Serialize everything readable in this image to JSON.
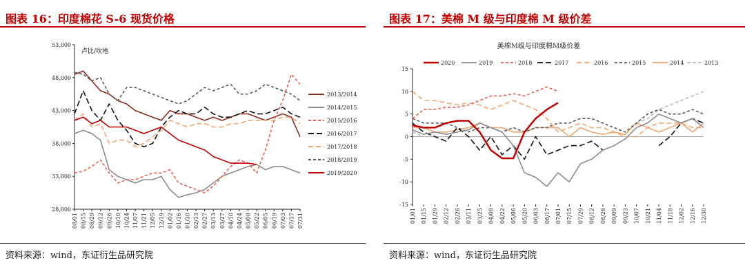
{
  "colors": {
    "accent": "#c00000"
  },
  "left": {
    "title": "图表 16：印度棉花 S-6 现货价格",
    "source": "资料来源：wind，东证衍生品研究院"
  },
  "right": {
    "title": "图表 17：美棉 M 级与印度棉 M 级价差",
    "source": "资料来源：wind，东证衍生品研究院"
  },
  "chart_data": [
    {
      "type": "line",
      "ylabel": "卢比/坎地",
      "ylim": [
        28000,
        53000
      ],
      "yticks": [
        28000,
        33000,
        38000,
        43000,
        48000,
        53000
      ],
      "ytick_labels": [
        "28,000",
        "33,000",
        "38,000",
        "43,000",
        "48,000",
        "53,000"
      ],
      "x_tick_labels": [
        "08/01",
        "08/15",
        "08/29",
        "09/12",
        "09/26",
        "10/10",
        "10/24",
        "11/07",
        "11/21",
        "12/05",
        "12/19",
        "01/02",
        "01/16",
        "01/30",
        "02/13",
        "02/27",
        "03/13",
        "03/27",
        "04/10",
        "04/24",
        "05/08",
        "05/22",
        "06/05",
        "06/19",
        "07/03",
        "07/17",
        "07/31"
      ],
      "legend_position": "right",
      "series": [
        {
          "name": "2013/2014",
          "color": "#8b2a1e",
          "dash": "solid",
          "values": [
            48500,
            49000,
            47500,
            46000,
            45500,
            44500,
            44000,
            43000,
            42500,
            42000,
            41500,
            43000,
            42500,
            42500,
            42000,
            41500,
            42000,
            41500,
            42000,
            42500,
            42500,
            42000,
            41500,
            42000,
            42500,
            42000,
            39000
          ]
        },
        {
          "name": "2014/2015",
          "color": "#8c8c8c",
          "dash": "solid",
          "values": [
            39500,
            40000,
            39500,
            38500,
            34000,
            33000,
            32500,
            32000,
            32500,
            32500,
            33000,
            31000,
            29800,
            30200,
            30500,
            31000,
            32000,
            33000,
            33500,
            34000,
            34500,
            34800,
            34000,
            34500,
            34500,
            34000,
            33500
          ]
        },
        {
          "name": "2015/2016",
          "color": "#ea5c52",
          "dash": "4,3",
          "values": [
            33500,
            33800,
            34500,
            35500,
            33500,
            32000,
            32500,
            32500,
            33000,
            33500,
            33500,
            34000,
            32000,
            31500,
            31000,
            30500,
            31500,
            33000,
            34500,
            35500,
            35000,
            33500,
            37000,
            41500,
            44500,
            48500,
            47000
          ]
        },
        {
          "name": "2016/2017",
          "color": "#111111",
          "dash": "8,4",
          "values": [
            42500,
            46000,
            43000,
            41500,
            44000,
            41500,
            40000,
            38000,
            37500,
            38000,
            40500,
            42000,
            43000,
            42500,
            42500,
            43500,
            42500,
            42000,
            42000,
            42500,
            43000,
            42500,
            42500,
            43000,
            43500,
            42500,
            42000
          ]
        },
        {
          "name": "2017/2018",
          "color": "#f4a56e",
          "dash": "7,4",
          "values": [
            41500,
            42500,
            40500,
            41000,
            38000,
            38500,
            38500,
            37500,
            38000,
            39000,
            40000,
            41500,
            41000,
            40500,
            41000,
            41000,
            40500,
            40500,
            41000,
            41000,
            41500,
            41500,
            41500,
            41500,
            42000,
            42000,
            41000
          ]
        },
        {
          "name": "2018/2019",
          "color": "#555555",
          "dash": "4,3",
          "values": [
            48800,
            48500,
            47500,
            48000,
            45500,
            44500,
            46500,
            46500,
            46000,
            45500,
            45000,
            44500,
            44000,
            44500,
            45500,
            46500,
            46000,
            46500,
            47000,
            45500,
            45500,
            46000,
            47000,
            46500,
            46000,
            45500,
            44500
          ]
        },
        {
          "name": "2019/2020",
          "color": "#c00000",
          "dash": "solid",
          "values": [
            41500,
            42000,
            41000,
            41500,
            40500,
            40500,
            40500,
            40000,
            39500,
            40000,
            40500,
            39500,
            38500,
            38000,
            37500,
            37000,
            36000,
            35500,
            35000,
            35000,
            35000,
            34800,
            null,
            null,
            null,
            null,
            null
          ]
        }
      ]
    },
    {
      "type": "line",
      "title": "美棉M级与印度棉M级价差",
      "ylim": [
        -15,
        15
      ],
      "yticks": [
        -15,
        -10,
        -5,
        0,
        5,
        10,
        15
      ],
      "x_tick_labels": [
        "01/01",
        "01/15",
        "01/29",
        "02/12",
        "02/26",
        "03/11",
        "03/25",
        "04/08",
        "04/22",
        "05/06",
        "05/20",
        "06/03",
        "06/17",
        "07/01",
        "07/15",
        "07/29",
        "08/12",
        "08/26",
        "09/09",
        "09/23",
        "10/07",
        "10/21",
        "11/04",
        "11/18",
        "12/02",
        "12/16",
        "12/30"
      ],
      "legend_position": "top",
      "series": [
        {
          "name": "2020",
          "color": "#c00000",
          "dash": "solid",
          "width": 2.5,
          "values": [
            2.5,
            2,
            2,
            3,
            3.5,
            3.5,
            1,
            -3,
            -4.8,
            -4.8,
            1,
            4,
            6,
            7.5,
            null,
            null,
            null,
            null,
            null,
            null,
            null,
            null,
            null,
            null,
            null,
            null,
            null
          ]
        },
        {
          "name": "2019",
          "color": "#8c8c8c",
          "dash": "solid",
          "values": [
            1.5,
            0.5,
            1,
            0.5,
            1,
            1.5,
            3,
            2,
            1,
            -2,
            -8,
            -9,
            -11,
            -8,
            -10,
            -6,
            -5,
            -3,
            -2,
            -0.5,
            2,
            3,
            5,
            4,
            3,
            4,
            2
          ]
        },
        {
          "name": "2018",
          "color": "#ea5c52",
          "dash": "4,3",
          "values": [
            4,
            6,
            6,
            6.5,
            6.5,
            7,
            8,
            9,
            9,
            9.5,
            9,
            10,
            11,
            10,
            null,
            null,
            null,
            null,
            null,
            null,
            null,
            null,
            null,
            null,
            null,
            null,
            null
          ]
        },
        {
          "name": "2017",
          "color": "#111111",
          "dash": "8,4",
          "values": [
            3,
            1,
            0,
            -1,
            2,
            0,
            -3,
            0,
            -4,
            -2,
            -5,
            0,
            -4,
            -3,
            -2,
            -2,
            -1,
            -3,
            null,
            null,
            null,
            null,
            -2,
            0,
            3,
            4,
            3
          ]
        },
        {
          "name": "2016",
          "color": "#f4a56e",
          "dash": "7,4",
          "values": [
            10,
            8,
            8,
            7.5,
            7,
            7.5,
            7,
            6,
            7,
            8,
            7,
            6,
            4,
            1,
            2,
            3,
            2,
            2,
            1,
            0,
            0,
            2,
            3,
            3,
            3,
            2,
            2
          ]
        },
        {
          "name": "2015",
          "color": "#555555",
          "dash": "4,3",
          "values": [
            4,
            3,
            3,
            3,
            2,
            1,
            2,
            2,
            1,
            2,
            1,
            2,
            2,
            3,
            3,
            4,
            4,
            3,
            2,
            1,
            3,
            5,
            6,
            5,
            5,
            6,
            5
          ]
        },
        {
          "name": "2014",
          "color": "#f4a56e",
          "dash": "solid",
          "values": [
            2,
            2,
            1,
            1,
            1.5,
            2,
            3,
            2,
            2,
            1,
            1,
            2,
            2,
            2,
            0,
            2,
            1,
            0.5,
            1,
            0.5,
            3,
            2,
            1,
            2,
            3,
            1,
            3
          ]
        },
        {
          "name": "2013",
          "color": "#bbbbbb",
          "dash": "5,3",
          "values": [
            1,
            0,
            0,
            0,
            null,
            null,
            null,
            null,
            null,
            null,
            null,
            null,
            null,
            null,
            null,
            null,
            null,
            null,
            null,
            null,
            3,
            4,
            6,
            7,
            8,
            9,
            10
          ]
        }
      ]
    }
  ]
}
